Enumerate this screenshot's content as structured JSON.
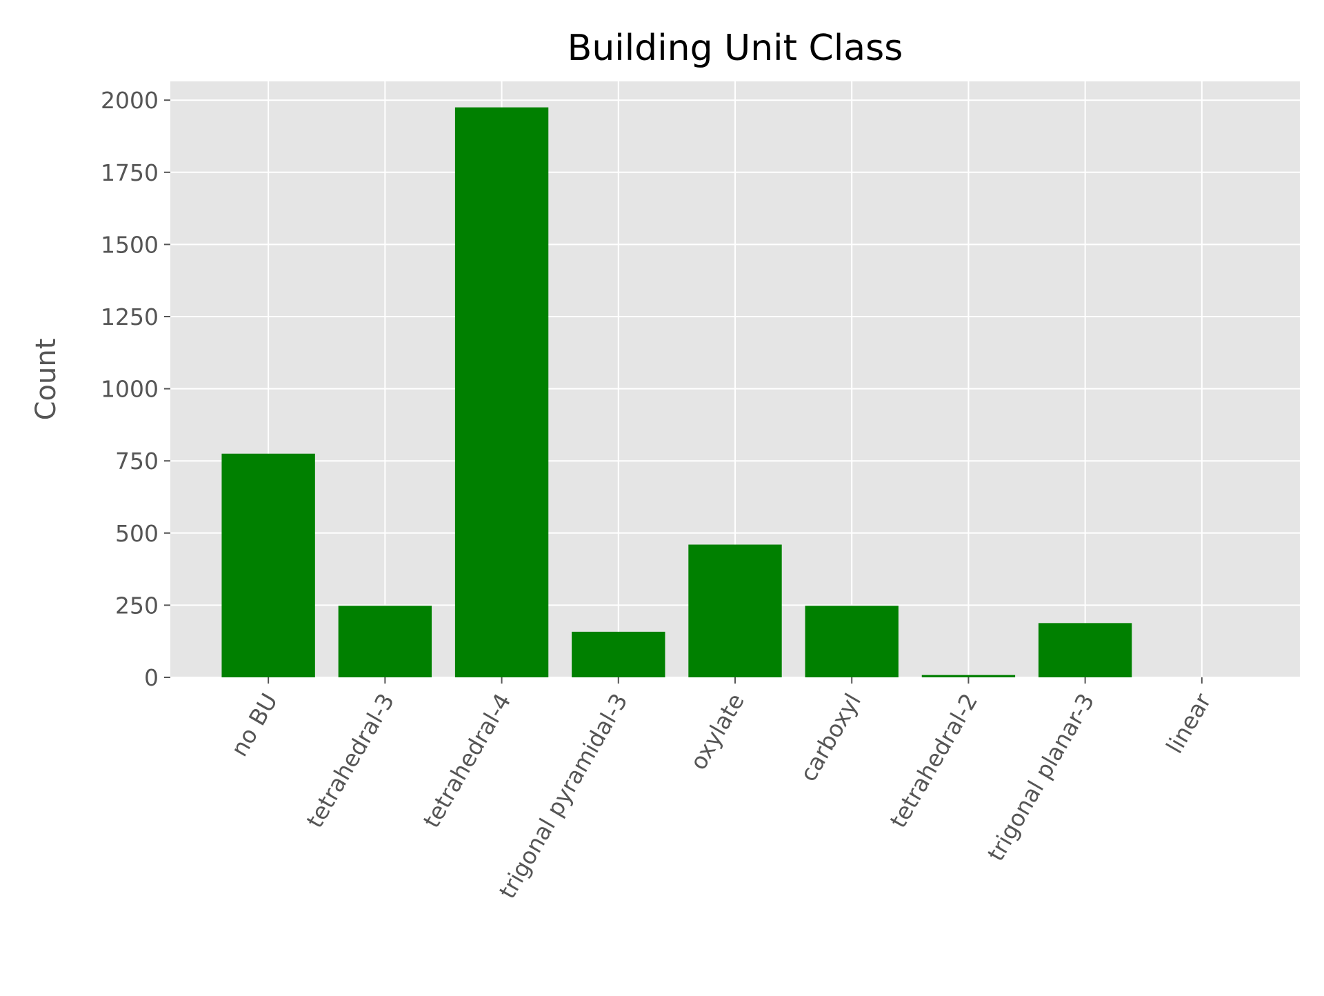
{
  "chart_data": {
    "type": "bar",
    "title": "Building Unit Class",
    "xlabel": "",
    "ylabel": "Count",
    "categories": [
      "no BU",
      "tetrahedral-3",
      "tetrahedral-4",
      "trigonal pyramidal-3",
      "oxylate",
      "carboxyl",
      "tetrahedral-2",
      "trigonal planar-3",
      "linear"
    ],
    "values": [
      775,
      248,
      1975,
      158,
      460,
      248,
      8,
      188,
      0
    ],
    "ylim": [
      0,
      2065
    ],
    "yticks": [
      0,
      250,
      500,
      750,
      1000,
      1250,
      1500,
      1750,
      2000
    ],
    "grid": true,
    "legend": "none",
    "colors": {
      "bar": "#008000",
      "plot_background": "#e5e5e5",
      "grid": "#ffffff",
      "tick_text": "#555555",
      "title_text": "#000000"
    }
  }
}
